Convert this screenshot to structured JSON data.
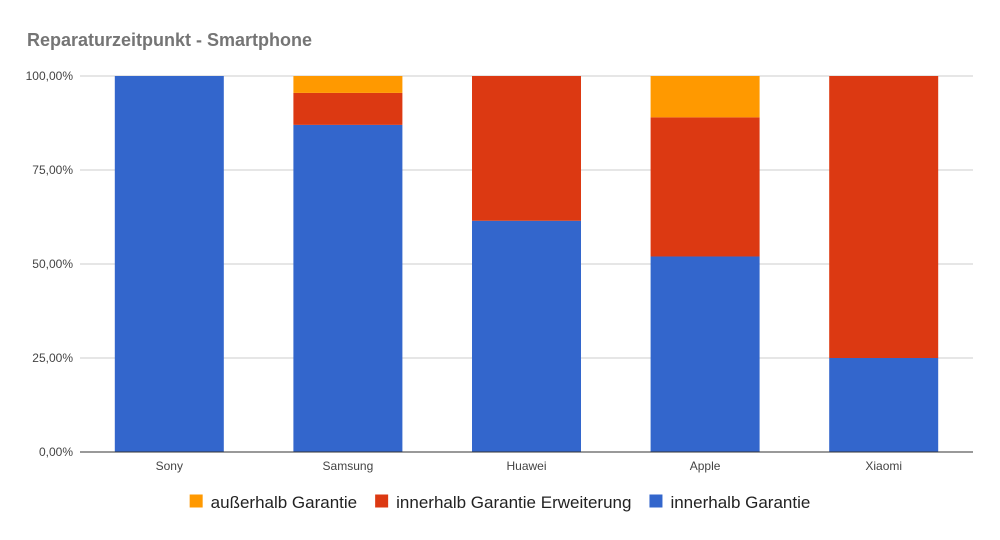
{
  "chart_data": {
    "type": "bar",
    "stacked": true,
    "title": "Reparaturzeitpunkt - Smartphone",
    "xlabel": "",
    "ylabel": "",
    "ylim": [
      0,
      100
    ],
    "y_ticks": [
      0,
      25,
      50,
      75,
      100
    ],
    "y_tick_labels": [
      "0,00%",
      "25,00%",
      "50,00%",
      "75,00%",
      "100,00%"
    ],
    "categories": [
      "Sony",
      "Samsung",
      "Huawei",
      "Apple",
      "Xiaomi"
    ],
    "series": [
      {
        "name": "innerhalb Garantie",
        "color": "#3366cc",
        "values": [
          100,
          87,
          61.5,
          52,
          25
        ]
      },
      {
        "name": "innerhalb Garantie Erweiterung",
        "color": "#dc3912",
        "values": [
          0,
          8.5,
          38.5,
          37,
          75
        ]
      },
      {
        "name": "außerhalb Garantie",
        "color": "#ff9900",
        "values": [
          0,
          4.5,
          0,
          11,
          0
        ]
      }
    ],
    "legend_order": [
      "außerhalb Garantie",
      "innerhalb Garantie Erweiterung",
      "innerhalb Garantie"
    ],
    "legend_position": "bottom",
    "grid": true,
    "colors": {
      "grid": "#cccccc",
      "axis": "#333333",
      "title": "#757575"
    }
  }
}
